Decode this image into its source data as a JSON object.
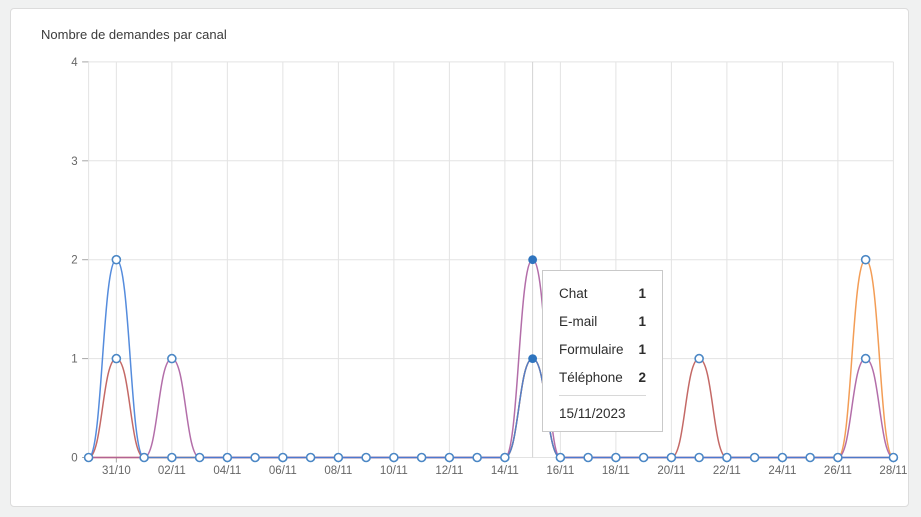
{
  "page": {
    "background": "#f0f1f1"
  },
  "card": {
    "title": "Nombre de demandes par canal",
    "background": "#ffffff",
    "border_color": "#dcdcdc"
  },
  "chart_data": {
    "type": "line",
    "title": "Nombre de demandes par canal",
    "dates": [
      "30/10",
      "31/10",
      "01/11",
      "02/11",
      "03/11",
      "04/11",
      "05/11",
      "06/11",
      "07/11",
      "08/11",
      "09/11",
      "10/11",
      "11/11",
      "12/11",
      "13/11",
      "14/11",
      "15/11",
      "16/11",
      "17/11",
      "18/11",
      "19/11",
      "20/11",
      "21/11",
      "22/11",
      "23/11",
      "24/11",
      "25/11",
      "26/11",
      "27/11",
      "28/11"
    ],
    "x_tick_labels": [
      "31/10",
      "02/11",
      "04/11",
      "06/11",
      "08/11",
      "10/11",
      "12/11",
      "14/11",
      "16/11",
      "18/11",
      "20/11",
      "22/11",
      "24/11",
      "26/11",
      "28/11"
    ],
    "y_ticks": [
      0,
      1,
      2,
      3,
      4
    ],
    "ylim": [
      0,
      4
    ],
    "grid": true,
    "legend": false,
    "series": [
      {
        "name": "Chat",
        "color": "#3D7CD8",
        "values": [
          0,
          2,
          0,
          0,
          0,
          0,
          0,
          0,
          0,
          0,
          0,
          0,
          0,
          0,
          0,
          0,
          1,
          0,
          0,
          0,
          0,
          0,
          0,
          0,
          0,
          0,
          0,
          0,
          0,
          0
        ]
      },
      {
        "name": "E-mail",
        "color": "#BC5451",
        "values": [
          0,
          1,
          0,
          0,
          0,
          0,
          0,
          0,
          0,
          0,
          0,
          0,
          0,
          0,
          0,
          0,
          1,
          0,
          0,
          0,
          0,
          0,
          1,
          0,
          0,
          0,
          0,
          0,
          0,
          0
        ]
      },
      {
        "name": "Formulaire",
        "color": "#F1903F",
        "values": [
          0,
          0,
          0,
          0,
          0,
          0,
          0,
          0,
          0,
          0,
          0,
          0,
          0,
          0,
          0,
          0,
          1,
          0,
          0,
          0,
          0,
          0,
          0,
          0,
          0,
          0,
          0,
          0,
          2,
          0
        ]
      },
      {
        "name": "Téléphone",
        "color": "#A85A9D",
        "values": [
          0,
          0,
          0,
          1,
          0,
          0,
          0,
          0,
          0,
          0,
          0,
          0,
          0,
          0,
          0,
          0,
          2,
          0,
          0,
          0,
          0,
          0,
          0,
          0,
          0,
          0,
          0,
          0,
          1,
          0
        ]
      }
    ],
    "marker": {
      "stroke": "#4B87C5",
      "fill": "#ffffff",
      "active_fill": "#2F74BE"
    },
    "hidden_zero_marker_dates": [
      "31/10",
      "27/11"
    ],
    "active_date": "15/11",
    "grid_color": "#e3e3e3",
    "tick_color": "#a6a6a6",
    "axis_label_color": "#666666"
  },
  "tooltip": {
    "rows": [
      {
        "label": "Chat",
        "value": "1"
      },
      {
        "label": "E-mail",
        "value": "1"
      },
      {
        "label": "Formulaire",
        "value": "1"
      },
      {
        "label": "Téléphone",
        "value": "2"
      }
    ],
    "date": "15/11/2023"
  }
}
